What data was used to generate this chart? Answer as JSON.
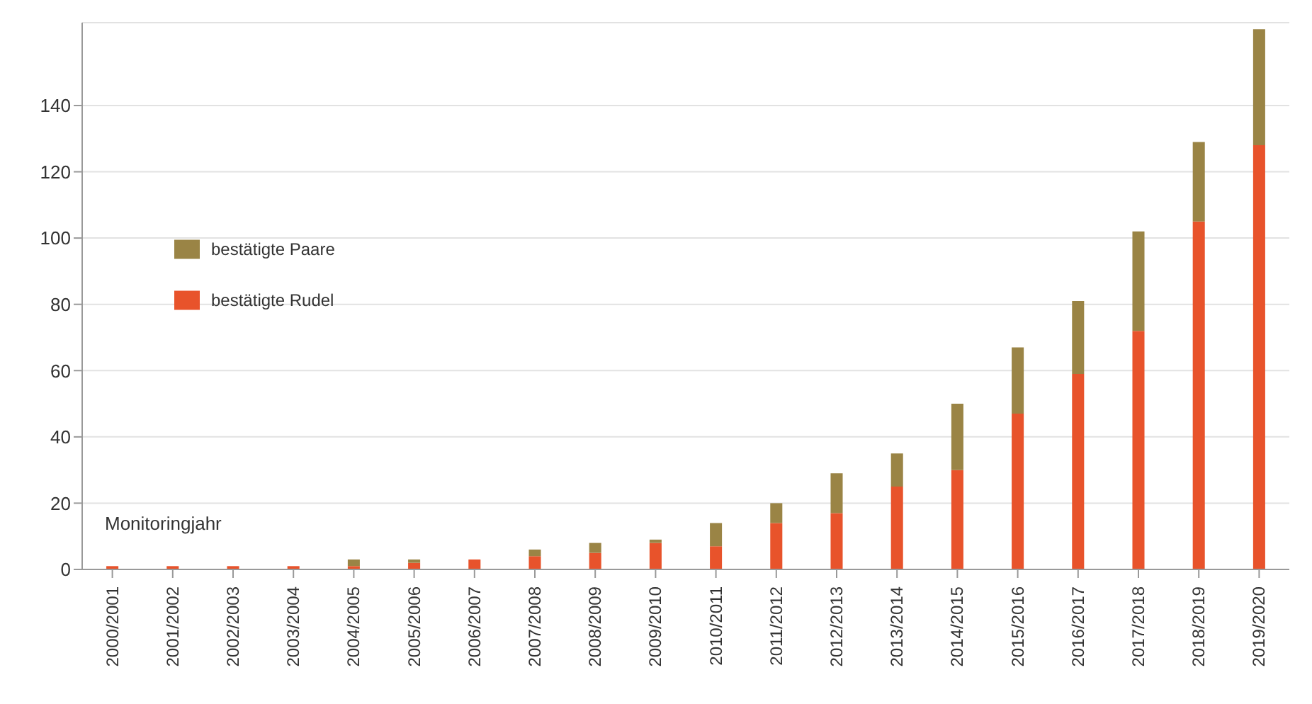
{
  "chart_data": {
    "type": "bar",
    "stacked": true,
    "categories": [
      "2000/2001",
      "2001/2002",
      "2002/2003",
      "2003/2004",
      "2004/2005",
      "2005/2006",
      "2006/2007",
      "2007/2008",
      "2008/2009",
      "2009/2010",
      "2010/2011",
      "2011/2012",
      "2012/2013",
      "2013/2014",
      "2014/2015",
      "2015/2016",
      "2016/2017",
      "2017/2018",
      "2018/2019",
      "2019/2020"
    ],
    "series": [
      {
        "name": "bestätigte Rudel",
        "color": "#e8532b",
        "values": [
          1,
          1,
          1,
          1,
          1,
          2,
          3,
          4,
          5,
          8,
          7,
          14,
          17,
          25,
          30,
          47,
          59,
          72,
          105,
          128
        ]
      },
      {
        "name": "bestätigte Paare",
        "color": "#9a8445",
        "values": [
          0,
          0,
          0,
          0,
          2,
          1,
          0,
          2,
          3,
          1,
          7,
          6,
          12,
          10,
          20,
          20,
          22,
          30,
          24,
          35
        ]
      }
    ],
    "ylim": [
      0,
      165
    ],
    "yticks": [
      0,
      20,
      40,
      60,
      80,
      100,
      120,
      140
    ],
    "grid": "y",
    "legend": "left",
    "annotations": [
      "Monitoringjahr"
    ]
  }
}
